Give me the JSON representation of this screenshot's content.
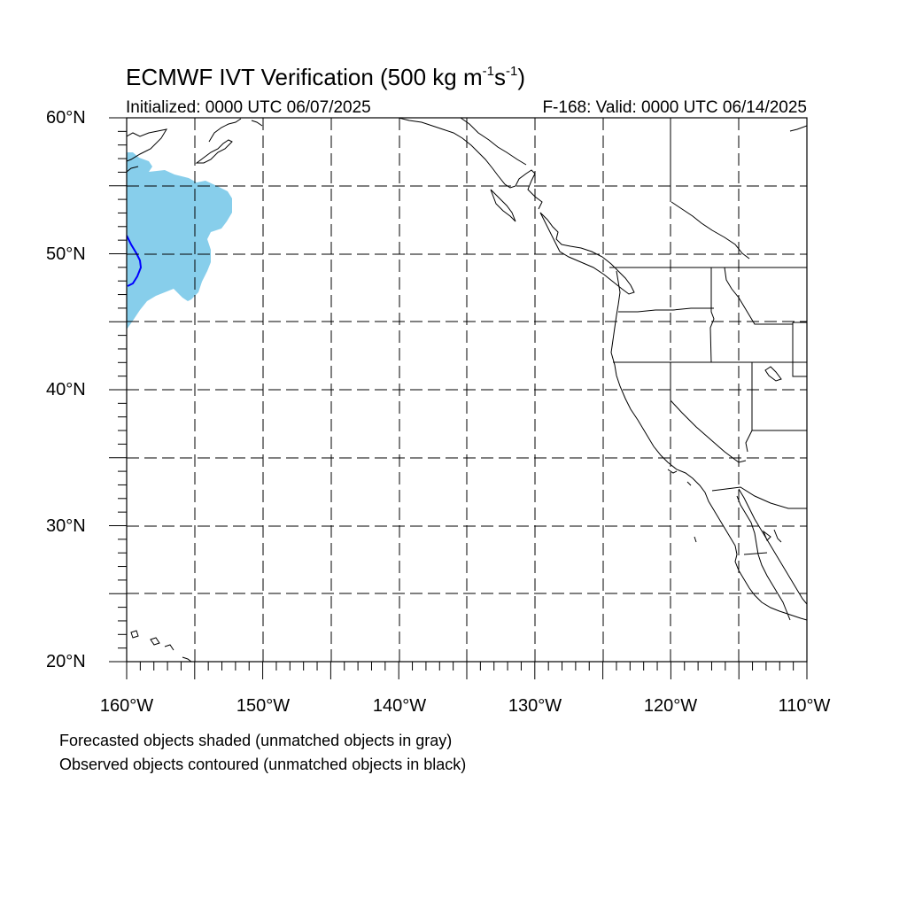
{
  "header": {
    "title_main": "ECMWF IVT Verification (500 kg m",
    "title_exp1": "-1",
    "title_mid": "s",
    "title_exp2": "-1",
    "title_end": ")",
    "initialized": "Initialized: 0000 UTC 06/07/2025",
    "valid": "F-168: Valid: 0000 UTC 06/14/2025"
  },
  "map": {
    "projection": "cylindrical equidistant",
    "lon_range": [
      -160,
      -110
    ],
    "lat_range": [
      20,
      60
    ],
    "gridlines": "dashed",
    "lat_labels": [
      "60°N",
      "50°N",
      "40°N",
      "30°N",
      "20°N"
    ],
    "lon_labels": [
      "160°W",
      "150°W",
      "140°W",
      "130°W",
      "120°W",
      "110°W"
    ],
    "forecast_object_color": "#87ceeb",
    "observed_contour_color": "#0000ff"
  },
  "legend": {
    "line1": "Forecasted objects shaded (unmatched objects in gray)",
    "line2": "Observed objects contoured (unmatched objects in black)"
  }
}
